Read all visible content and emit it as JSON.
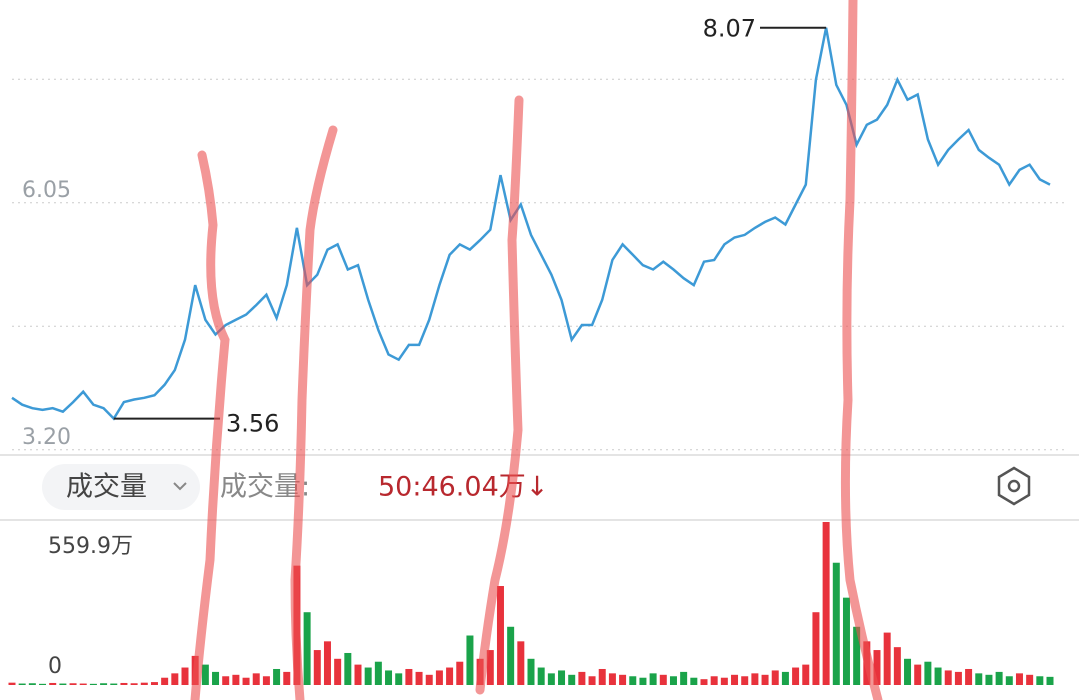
{
  "chart_data": [
    {
      "type": "line",
      "color": "#3d9ad6",
      "ylim": [
        3.14,
        8.39
      ],
      "yticks": [
        {
          "value": 3.2,
          "label": "3.20"
        },
        {
          "value": 6.05,
          "label": "6.05"
        }
      ],
      "gridlines": [
        4.625,
        7.475
      ],
      "high": 8.07,
      "low": 3.56,
      "values": [
        3.8,
        3.72,
        3.68,
        3.66,
        3.68,
        3.64,
        3.75,
        3.87,
        3.72,
        3.68,
        3.56,
        3.75,
        3.78,
        3.8,
        3.83,
        3.95,
        4.12,
        4.47,
        5.1,
        4.7,
        4.53,
        4.64,
        4.7,
        4.76,
        4.87,
        4.99,
        4.72,
        5.1,
        5.76,
        5.1,
        5.22,
        5.51,
        5.57,
        5.28,
        5.33,
        4.93,
        4.58,
        4.3,
        4.24,
        4.41,
        4.41,
        4.7,
        5.1,
        5.45,
        5.57,
        5.51,
        5.62,
        5.74,
        6.37,
        5.85,
        6.03,
        5.68,
        5.45,
        5.22,
        4.93,
        4.47,
        4.64,
        4.64,
        4.93,
        5.39,
        5.57,
        5.45,
        5.33,
        5.28,
        5.37,
        5.28,
        5.18,
        5.1,
        5.37,
        5.39,
        5.57,
        5.65,
        5.68,
        5.76,
        5.83,
        5.88,
        5.8,
        6.03,
        6.26,
        7.47,
        8.07,
        7.41,
        7.18,
        6.72,
        6.95,
        7.01,
        7.18,
        7.47,
        7.24,
        7.3,
        6.78,
        6.49,
        6.66,
        6.78,
        6.89,
        6.66,
        6.57,
        6.49,
        6.26,
        6.43,
        6.49,
        6.32,
        6.26
      ]
    },
    {
      "type": "bar",
      "up_color": "#e8323c",
      "down_color": "#1aa34a",
      "ylim": [
        0,
        559.9
      ],
      "yticks": [
        0,
        {
          "value": 559.9,
          "label": "559.9万"
        }
      ],
      "values": [
        8,
        5,
        6,
        4,
        7,
        5,
        6,
        5,
        4,
        6,
        5,
        7,
        6,
        8,
        10,
        25,
        40,
        60,
        100,
        70,
        45,
        30,
        35,
        25,
        40,
        30,
        55,
        45,
        410,
        250,
        120,
        150,
        90,
        110,
        70,
        60,
        80,
        50,
        40,
        55,
        45,
        35,
        50,
        60,
        80,
        170,
        90,
        120,
        340,
        200,
        150,
        90,
        60,
        40,
        50,
        35,
        45,
        30,
        55,
        40,
        35,
        30,
        25,
        40,
        35,
        30,
        45,
        25,
        20,
        30,
        25,
        35,
        30,
        40,
        35,
        50,
        45,
        60,
        70,
        250,
        559.9,
        420,
        300,
        200,
        150,
        120,
        180,
        130,
        90,
        70,
        80,
        60,
        50,
        45,
        55,
        40,
        35,
        45,
        30,
        40,
        35,
        30,
        28
      ]
    }
  ],
  "toolbar": {
    "dropdown": "成交量",
    "label": "成交量:",
    "ma_label": "50:46.04万↓"
  }
}
